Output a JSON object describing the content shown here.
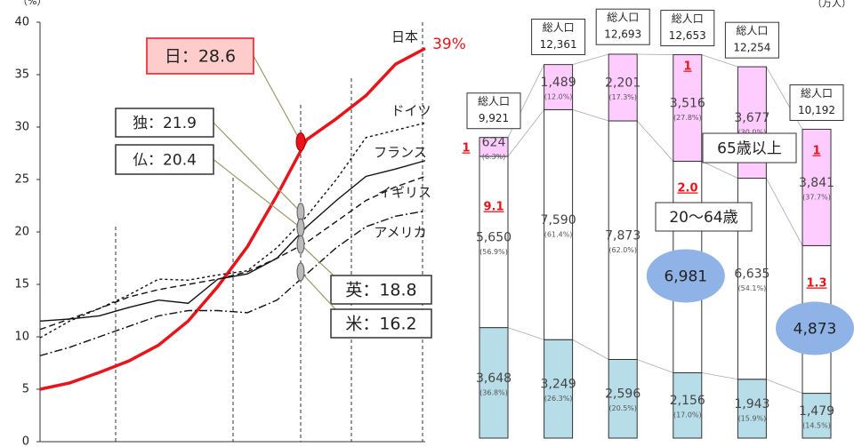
{
  "chart_data": [
    {
      "type": "line",
      "y_label": "（%）",
      "categories": [
        null,
        null,
        null,
        null,
        null,
        null,
        null,
        null,
        null,
        null,
        null,
        null,
        null,
        null
      ],
      "ylim": [
        0,
        40
      ],
      "yticks": [
        0,
        5,
        10,
        15,
        20,
        25,
        30,
        35,
        40
      ],
      "series": [
        {
          "name": "日本",
          "color": "#e8141b",
          "style": "solid",
          "values": [
            5.0,
            5.6,
            6.6,
            7.7,
            9.2,
            11.5,
            14.8,
            18.6,
            23.5,
            28.8,
            30.8,
            33.0,
            36.0,
            37.5
          ]
        },
        {
          "name": "ドイツ",
          "color": "#111111",
          "style": "dotted",
          "values": [
            9.9,
            11.5,
            12.7,
            14.0,
            15.5,
            15.4,
            15.9,
            16.3,
            18.5,
            21.5,
            25.0,
            29.0,
            29.7,
            30.4
          ]
        },
        {
          "name": "フランス",
          "color": "#111111",
          "style": "solid",
          "values": [
            11.5,
            11.7,
            12.0,
            12.8,
            13.5,
            13.2,
            15.5,
            16.0,
            17.5,
            20.5,
            23.0,
            25.3,
            26.0,
            26.8
          ]
        },
        {
          "name": "イギリス",
          "color": "#111111",
          "style": "dashed",
          "values": [
            10.7,
            11.7,
            12.7,
            13.8,
            14.5,
            15.0,
            15.5,
            16.2,
            17.5,
            19.0,
            21.0,
            23.0,
            24.3,
            25.3
          ]
        },
        {
          "name": "アメリカ",
          "color": "#111111",
          "style": "dashdot",
          "values": [
            8.2,
            9.0,
            10.0,
            11.0,
            12.0,
            12.5,
            12.5,
            12.3,
            13.5,
            16.0,
            18.5,
            20.5,
            21.5,
            22.0
          ]
        }
      ],
      "end_label": "39%",
      "annotations": [
        {
          "text": "日：28.6",
          "value": 28.6
        },
        {
          "text": "独：21.9",
          "value": 21.9
        },
        {
          "text": "仏：20.4",
          "value": 20.4
        },
        {
          "text": "英：18.8",
          "value": 18.8
        },
        {
          "text": "米：16.2",
          "value": 16.2
        }
      ]
    },
    {
      "type": "stacked_bar",
      "unit_label": "（万人）",
      "categories": [
        null,
        null,
        null,
        null,
        null,
        null
      ],
      "ylim": [
        0,
        14400
      ],
      "series": [
        {
          "color": "#b7dde8",
          "values": [
            3648,
            3249,
            2596,
            2156,
            1943,
            1479
          ],
          "value_labels": [
            "3,648",
            "3,249",
            "2,596",
            "2,156",
            "1,943",
            "1,479"
          ],
          "share_labels": [
            "(36.8%)",
            "(26.3%)",
            "(20.5%)",
            "(17.0%)",
            "(15.9%)",
            "(14.5%)"
          ]
        },
        {
          "name": "20～64歳",
          "color": "#ffffff",
          "values": [
            5650,
            7590,
            7873,
            6981,
            6635,
            4873
          ],
          "value_labels": [
            "5,650",
            "7,590",
            "7,873",
            "6,981",
            "6,635",
            "4,873"
          ],
          "share_labels": [
            "(56.9%)",
            "(61.4%)",
            "(62.0%)",
            null,
            "(54.1%)",
            null
          ]
        },
        {
          "name": "65歳以上",
          "color": "#ffccff",
          "values": [
            624,
            1489,
            2201,
            3516,
            3677,
            3841
          ],
          "value_labels": [
            "624",
            "1,489",
            "2,201",
            "3,516",
            "3,677",
            "3,841"
          ],
          "share_labels": [
            "(6.3%)",
            "(12.0%)",
            "(17.3%)",
            "(27.8%)",
            "(30.0%)",
            "(37.7%)"
          ]
        }
      ],
      "total_caption": "総人口",
      "totals": [
        9921,
        12361,
        12693,
        12653,
        12254,
        10192
      ],
      "total_labels": [
        "9,921",
        "12,361",
        "12,693",
        "12,653",
        "12,254",
        "10,192"
      ],
      "annotations": [
        "1",
        "9.1",
        "1",
        "2.0",
        "1",
        "1.3"
      ]
    }
  ]
}
